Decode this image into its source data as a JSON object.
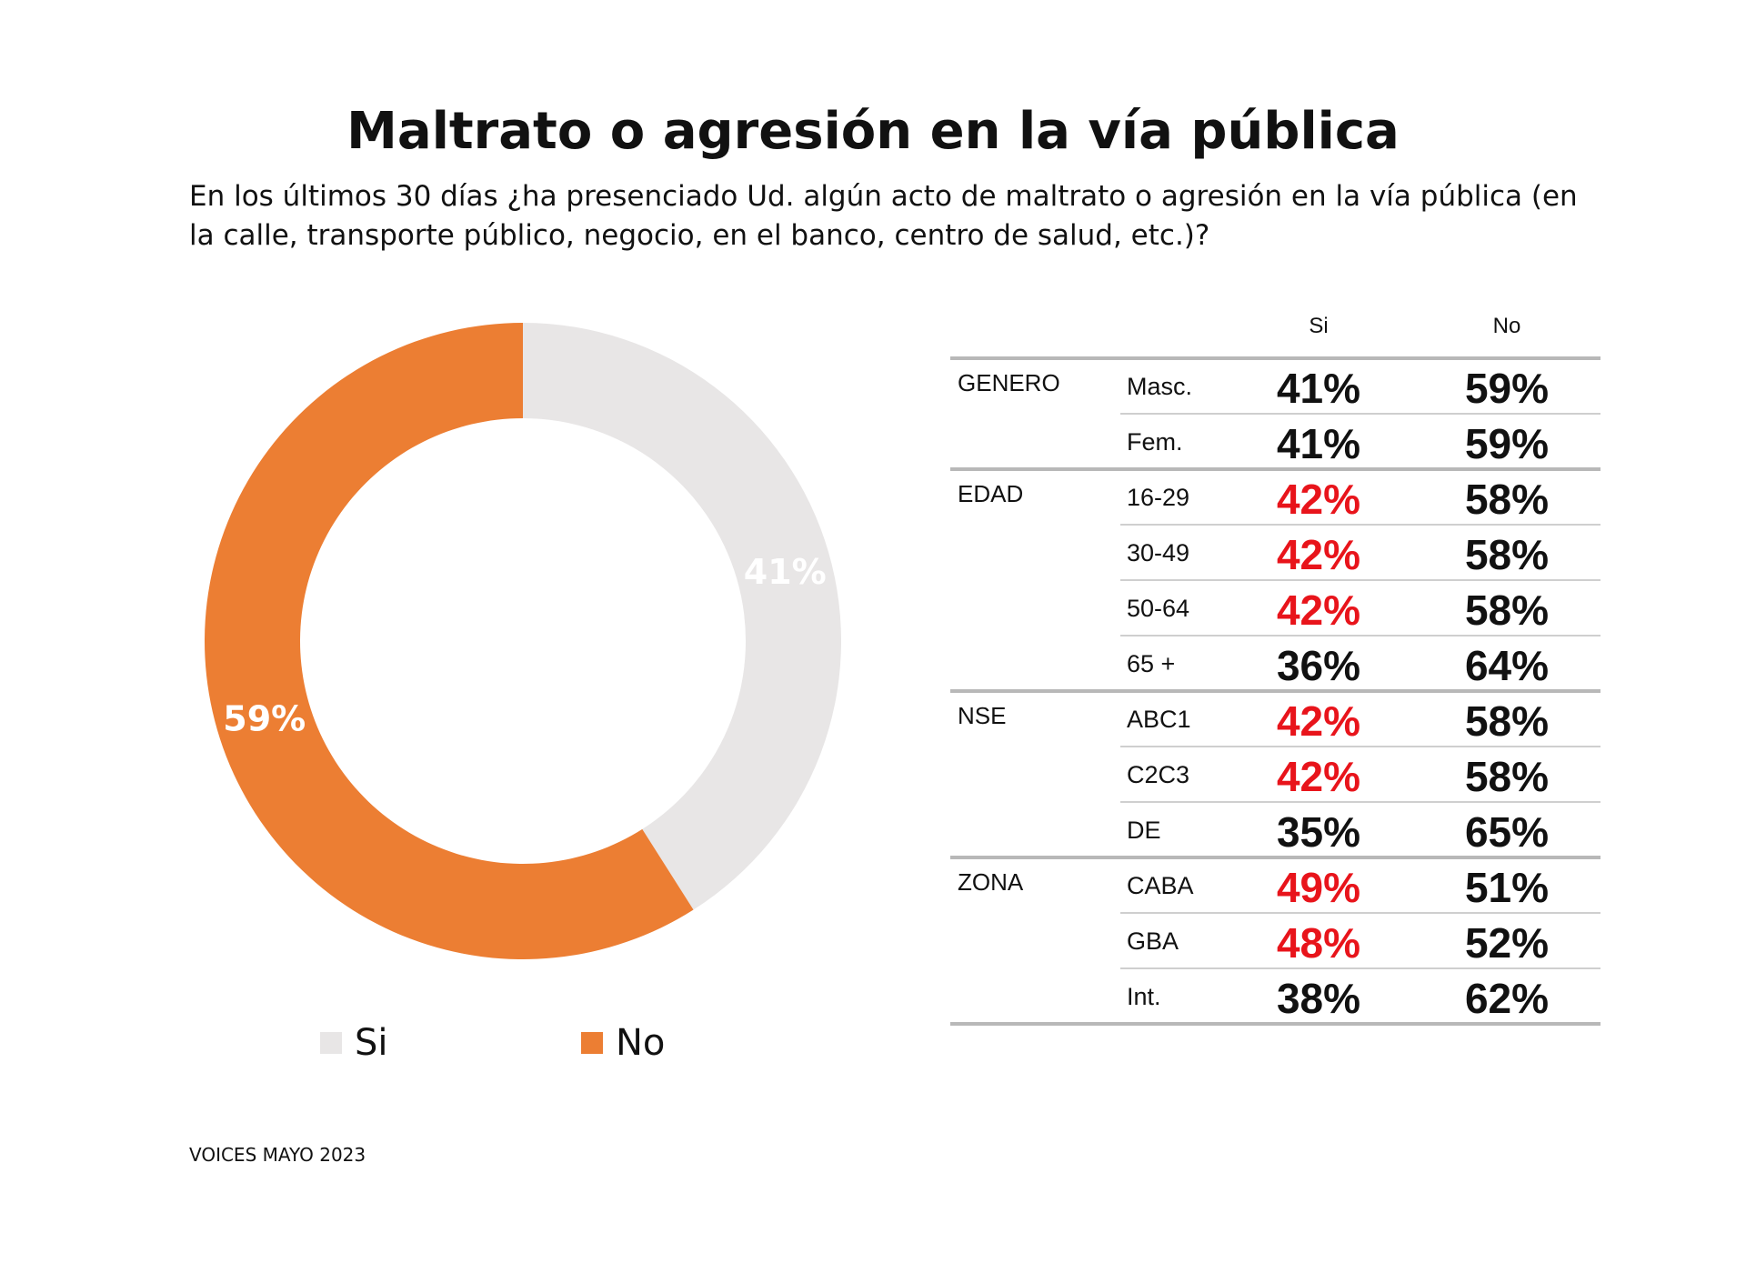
{
  "title": "Maltrato o agresión en la vía pública",
  "subtitle": "En los últimos 30 días ¿ha presenciado Ud.  algún acto de maltrato o agresión en la vía pública (en la calle, transporte público, negocio, en el banco, centro de salud, etc.)?",
  "source": "VOICES MAYO 2023",
  "colors": {
    "si": "#e8e6e6",
    "no": "#ec7e33",
    "highlight": "#e8141b",
    "text": "#111111"
  },
  "chart_data": [
    {
      "type": "pie",
      "hole": true,
      "categories": [
        "Si",
        "No"
      ],
      "values": [
        41,
        59
      ],
      "labels": [
        "41%",
        "59%"
      ],
      "legend": [
        "Si",
        "No"
      ],
      "legend_placement": "bottom"
    },
    {
      "type": "table",
      "columns": [
        "Si",
        "No"
      ],
      "rows": [
        {
          "group": "GENERO",
          "label": "Masc.",
          "si": "41%",
          "no": "59%",
          "highlight": false
        },
        {
          "group": "",
          "label": "Fem.",
          "si": "41%",
          "no": "59%",
          "highlight": false
        },
        {
          "group": "EDAD",
          "label": "16-29",
          "si": "42%",
          "no": "58%",
          "highlight": true
        },
        {
          "group": "",
          "label": "30-49",
          "si": "42%",
          "no": "58%",
          "highlight": true
        },
        {
          "group": "",
          "label": "50-64",
          "si": "42%",
          "no": "58%",
          "highlight": true
        },
        {
          "group": "",
          "label": "65 +",
          "si": "36%",
          "no": "64%",
          "highlight": false
        },
        {
          "group": "NSE",
          "label": "ABC1",
          "si": "42%",
          "no": "58%",
          "highlight": true
        },
        {
          "group": "",
          "label": "C2C3",
          "si": "42%",
          "no": "58%",
          "highlight": true
        },
        {
          "group": "",
          "label": "DE",
          "si": "35%",
          "no": "65%",
          "highlight": false
        },
        {
          "group": "ZONA",
          "label": "CABA",
          "si": "49%",
          "no": "51%",
          "highlight": true
        },
        {
          "group": "",
          "label": "GBA",
          "si": "48%",
          "no": "52%",
          "highlight": true
        },
        {
          "group": "",
          "label": "Int.",
          "si": "38%",
          "no": "62%",
          "highlight": false
        }
      ]
    }
  ]
}
